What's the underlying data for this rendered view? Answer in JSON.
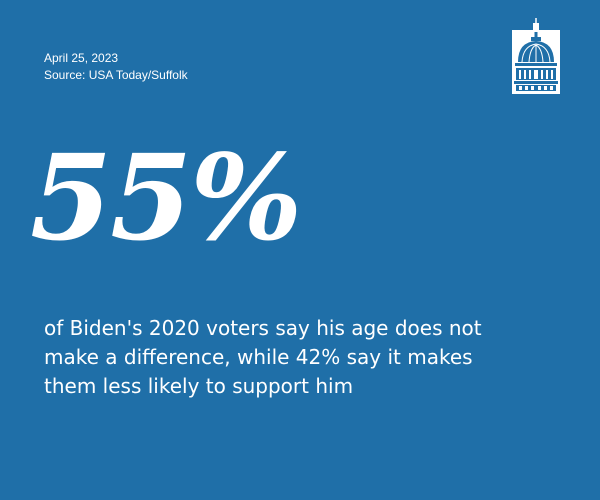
{
  "meta": {
    "date": "April 25, 2023",
    "source": "Source: USA Today/Suffolk"
  },
  "logo": {
    "icon": "capitol-dome-icon"
  },
  "headline": {
    "stat": "55%"
  },
  "description": {
    "lines": [
      "of Biden's 2020 voters say his age does not",
      "make a difference, while 42% say it makes",
      "them less likely to support him"
    ]
  },
  "colors": {
    "background": "#1f6fa8",
    "text": "#ffffff"
  }
}
